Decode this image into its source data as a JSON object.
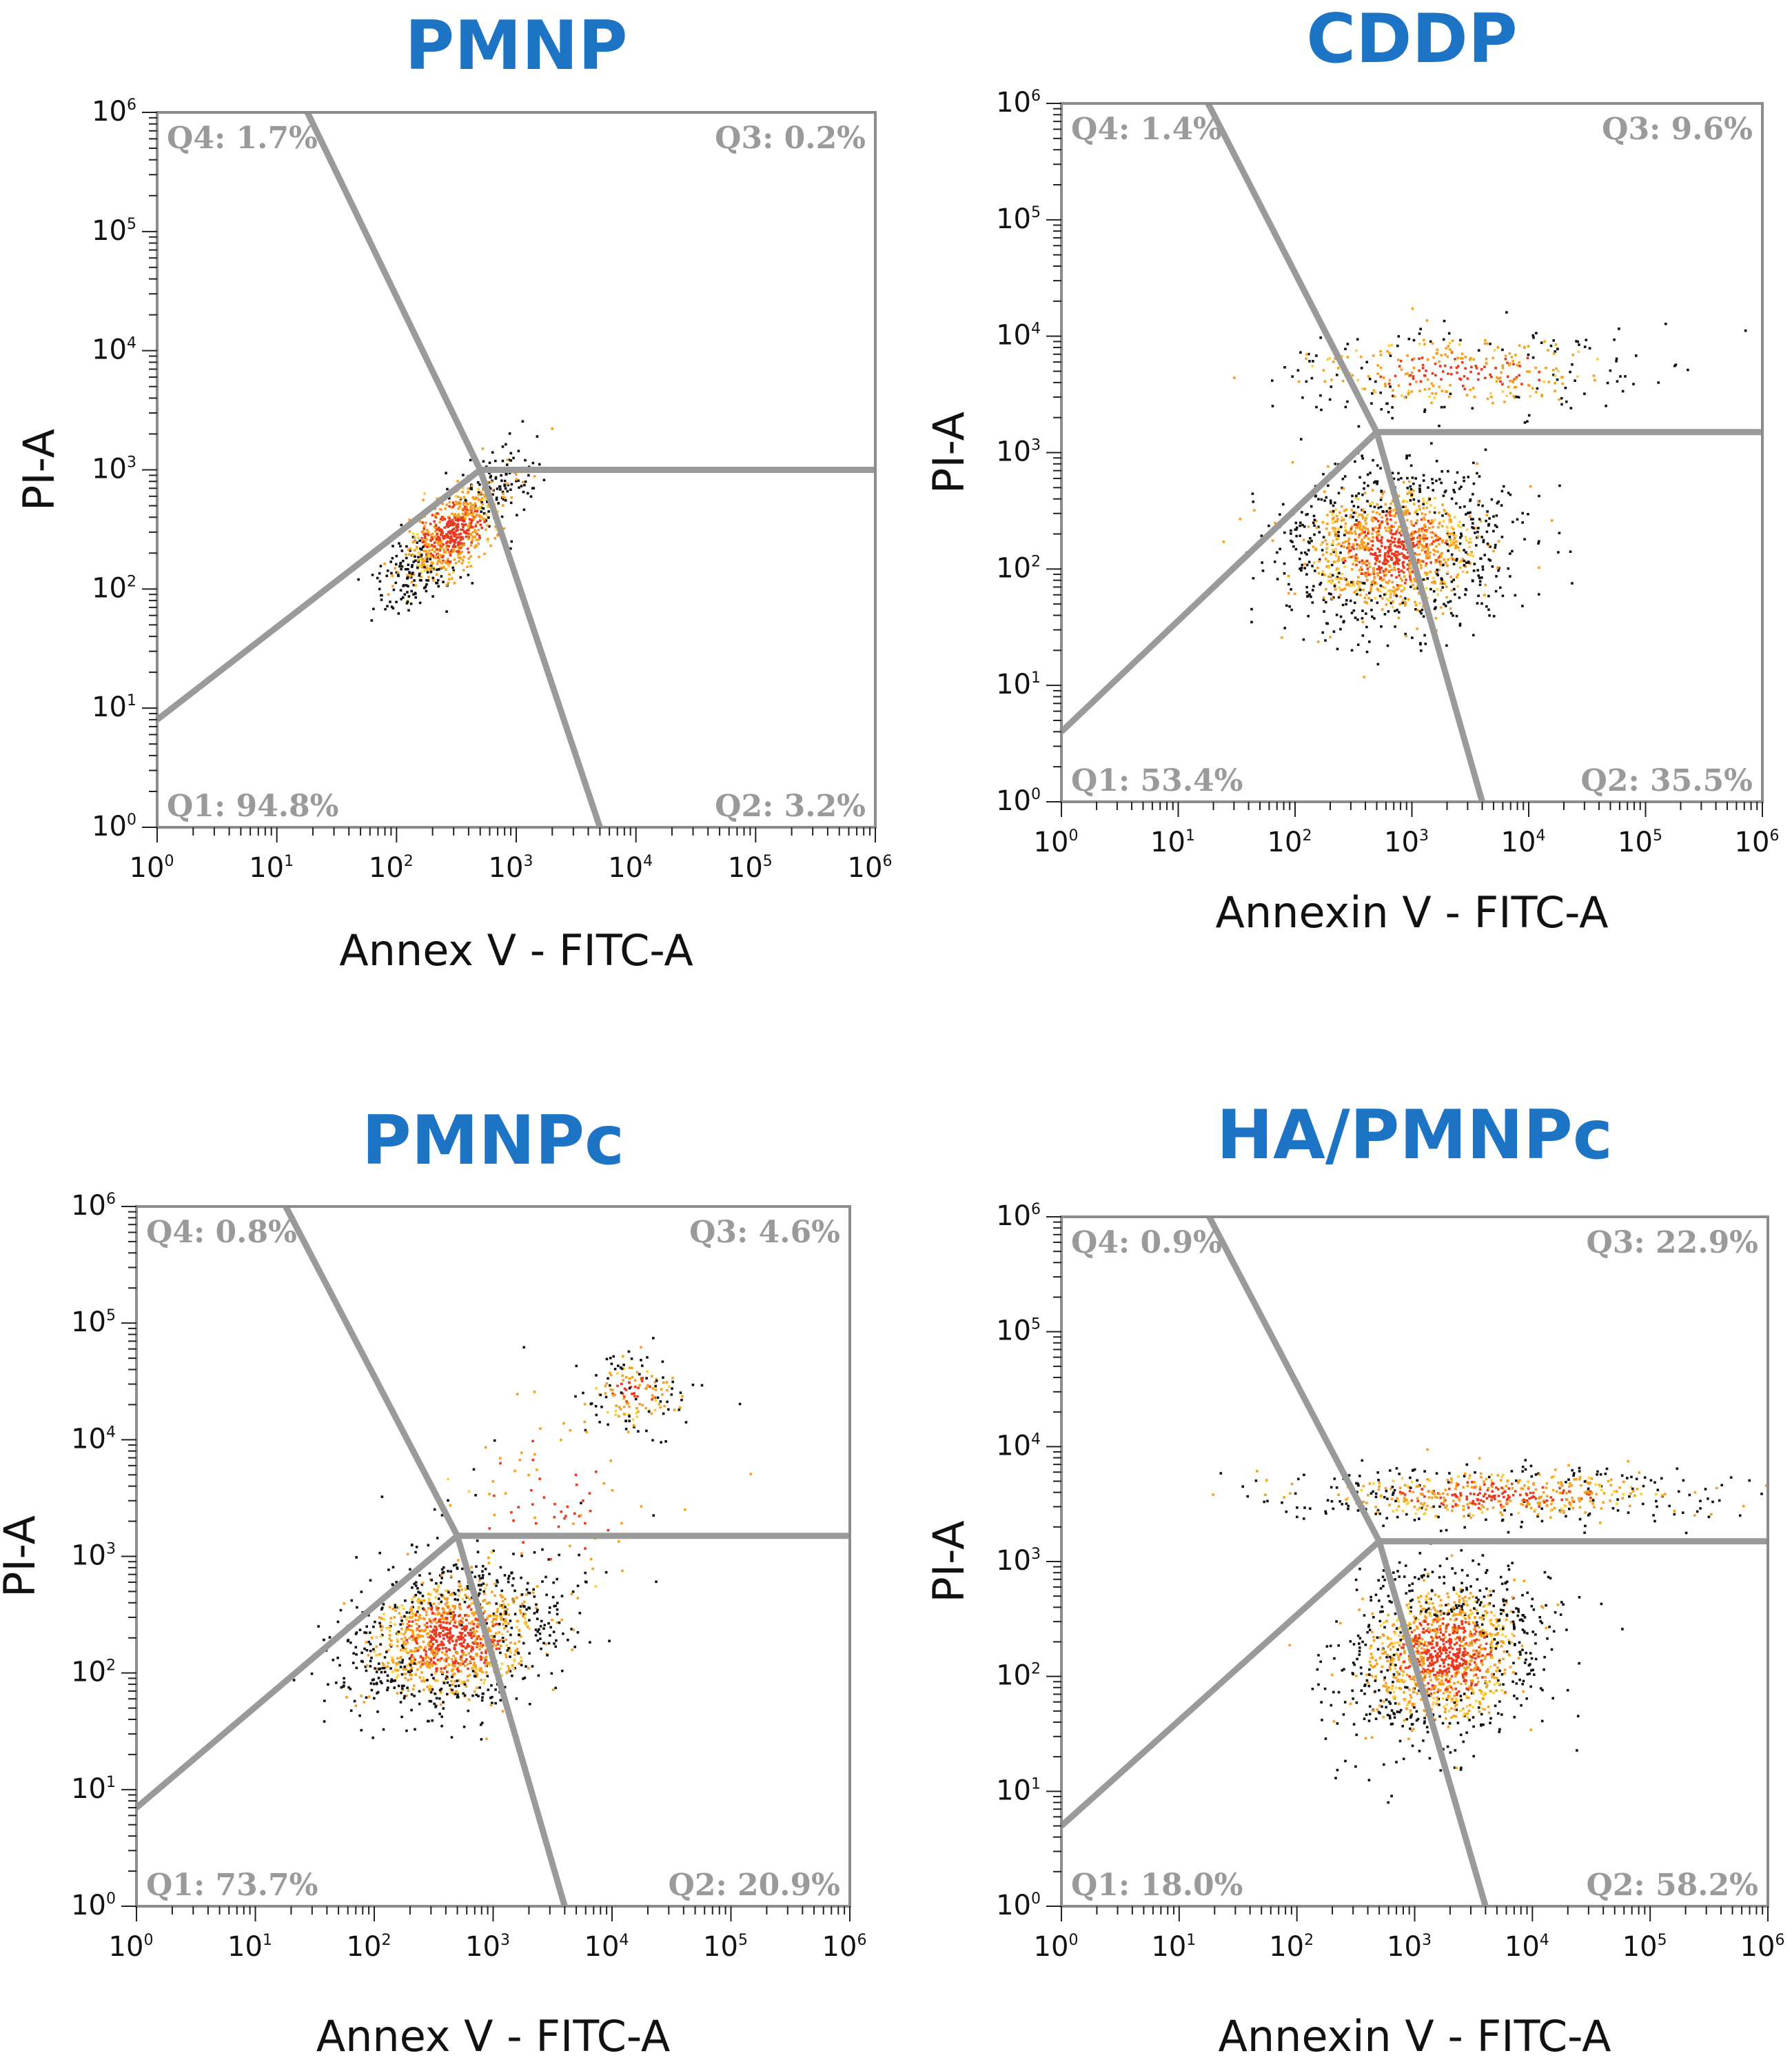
{
  "colors": {
    "title": "#1d73c4",
    "gate": "#9a9a9a",
    "frame": "#8c8c8c",
    "quadrant_label": "#9a9a9a",
    "event_dark": "#111111",
    "event_orange": "#f5a020",
    "event_red": "#e83a1e",
    "event_yellow": "#f8d040"
  },
  "chart_data": [
    {
      "type": "scatter",
      "title": "PMNP",
      "xlabel": "Annex V - FITC-A",
      "ylabel": "PI-A",
      "xscale": "log",
      "yscale": "log",
      "xlim": [
        1,
        1000000
      ],
      "ylim": [
        1,
        1000000
      ],
      "tick_base": "10",
      "tick_exponents": [
        "0",
        "1",
        "2",
        "3",
        "4",
        "5",
        "6"
      ],
      "gate_center": [
        500,
        1000
      ],
      "gate_top_x": 18,
      "gate_bottom_x": 5000,
      "gate_left_y": 8,
      "quadrants": {
        "q1": "Q1: 94.8%",
        "q2": "Q2: 3.2%",
        "q3": "Q3: 0.2%",
        "q4": "Q4: 1.7%"
      },
      "clusters": [
        {
          "cx": 300,
          "cy": 300,
          "spread_x": 0.28,
          "spread_y": 0.28,
          "rho": 0.78,
          "n": 900
        }
      ]
    },
    {
      "type": "scatter",
      "title": "CDDP",
      "xlabel": "Annexin V - FITC-A",
      "ylabel": "PI-A",
      "xscale": "log",
      "yscale": "log",
      "xlim": [
        1,
        1000000
      ],
      "ylim": [
        1,
        1000000
      ],
      "tick_base": "10",
      "tick_exponents": [
        "0",
        "1",
        "2",
        "3",
        "4",
        "5",
        "6"
      ],
      "gate_center": [
        500,
        1500
      ],
      "gate_top_x": 18,
      "gate_bottom_x": 4000,
      "gate_left_y": 4,
      "quadrants": {
        "q1": "Q1: 53.4%",
        "q2": "Q2: 35.5%",
        "q3": "Q3: 9.6%",
        "q4": "Q4: 1.4%"
      },
      "clusters": [
        {
          "cx": 700,
          "cy": 150,
          "spread_x": 0.45,
          "spread_y": 0.32,
          "rho": 0.1,
          "n": 1500
        },
        {
          "cx": 2500,
          "cy": 5000,
          "spread_x": 0.8,
          "spread_y": 0.18,
          "rho": 0.05,
          "n": 380
        }
      ]
    },
    {
      "type": "scatter",
      "title": "PMNPc",
      "xlabel": "Annex V - FITC-A",
      "ylabel": "PI-A",
      "xscale": "log",
      "yscale": "log",
      "xlim": [
        1,
        1000000
      ],
      "ylim": [
        1,
        1000000
      ],
      "tick_base": "10",
      "tick_exponents": [
        "0",
        "1",
        "2",
        "3",
        "4",
        "5",
        "6"
      ],
      "gate_center": [
        500,
        1500
      ],
      "gate_top_x": 18,
      "gate_bottom_x": 4000,
      "gate_left_y": 7,
      "quadrants": {
        "q1": "Q1: 73.7%",
        "q2": "Q2: 20.9%",
        "q3": "Q3: 4.6%",
        "q4": "Q4: 0.8%"
      },
      "clusters": [
        {
          "cx": 450,
          "cy": 200,
          "spread_x": 0.42,
          "spread_y": 0.3,
          "rho": 0.25,
          "n": 1400
        },
        {
          "cx": 15000,
          "cy": 25000,
          "spread_x": 0.2,
          "spread_y": 0.15,
          "rho": 0.1,
          "n": 160
        },
        {
          "cx": 3000,
          "cy": 3000,
          "spread_x": 0.6,
          "spread_y": 0.6,
          "rho": 0.3,
          "n": 120
        }
      ]
    },
    {
      "type": "scatter",
      "title": "HA/PMNPc",
      "xlabel": "Annexin V - FITC-A",
      "ylabel": "PI-A",
      "xscale": "log",
      "yscale": "log",
      "xlim": [
        1,
        1000000
      ],
      "ylim": [
        1,
        1000000
      ],
      "tick_base": "10",
      "tick_exponents": [
        "0",
        "1",
        "2",
        "3",
        "4",
        "5",
        "6"
      ],
      "gate_center": [
        500,
        1500
      ],
      "gate_top_x": 18,
      "gate_bottom_x": 4000,
      "gate_left_y": 5,
      "quadrants": {
        "q1": "Q1: 18.0%",
        "q2": "Q2: 58.2%",
        "q3": "Q3: 22.9%",
        "q4": "Q4: 0.9%"
      },
      "clusters": [
        {
          "cx": 1800,
          "cy": 150,
          "spread_x": 0.4,
          "spread_y": 0.35,
          "rho": 0.2,
          "n": 1500
        },
        {
          "cx": 5000,
          "cy": 3800,
          "spread_x": 0.85,
          "spread_y": 0.12,
          "rho": 0.05,
          "n": 600
        }
      ]
    }
  ]
}
